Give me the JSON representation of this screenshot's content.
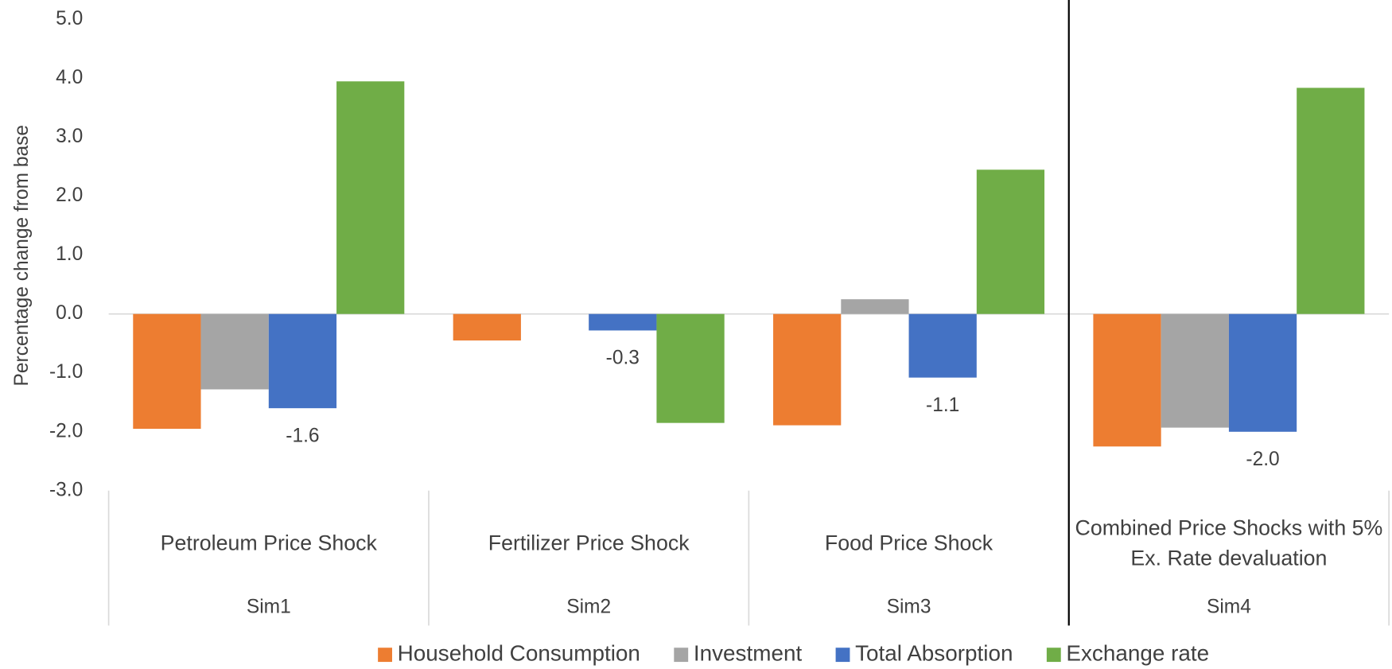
{
  "chart_data": {
    "type": "bar",
    "y_label": "Percentage change from base",
    "categories": [
      "Petroleum Price Shock",
      "Fertilizer Price Shock",
      "Food Price Shock",
      "Combined Price Shocks with 5% Ex. Rate devaluation"
    ],
    "groups": [
      "Sim1",
      "Sim2",
      "Sim3",
      "Sim4"
    ],
    "series": [
      {
        "name": "Household Consumption",
        "color": "#ed7d31",
        "values": [
          -1.95,
          -0.45,
          -1.89,
          -2.25
        ]
      },
      {
        "name": "Investment",
        "color": "#a5a5a5",
        "values": [
          -1.28,
          0,
          0.25,
          -1.93
        ]
      },
      {
        "name": "Total Absorption",
        "color": "#4472c4",
        "values": [
          -1.6,
          -0.28,
          -1.08,
          -2.0
        ],
        "value_labels": [
          "-1.6",
          "-0.3",
          "-1.1",
          "-2.0"
        ]
      },
      {
        "name": "Exchange rate",
        "color": "#70ad47",
        "values": [
          3.95,
          -1.85,
          2.45,
          3.84
        ]
      }
    ],
    "ylim": [
      -3,
      5
    ],
    "yticks": [
      {
        "value": -3,
        "label": "-3.0"
      },
      {
        "value": -2,
        "label": "-2.0"
      },
      {
        "value": -1,
        "label": "-1.0"
      },
      {
        "value": 0,
        "label": "0.0"
      },
      {
        "value": 1,
        "label": "1.0"
      },
      {
        "value": 2,
        "label": "2.0"
      },
      {
        "value": 3,
        "label": "3.0"
      },
      {
        "value": 4,
        "label": "4.0"
      },
      {
        "value": 5,
        "label": "5.0"
      }
    ],
    "legend": "bottom"
  }
}
